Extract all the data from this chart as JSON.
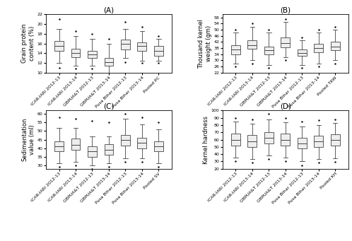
{
  "title_A": "(A)",
  "title_B": "(B)",
  "title_C": "(C)",
  "title_D": "(D)",
  "ylabel_A": "Grain protein\ncontent (%)",
  "ylabel_B": "Thousand kernel\nweight (gm)",
  "ylabel_C": "Sedimentation\nvalue (ml)",
  "ylabel_D": "Kernel hardness",
  "xticklabels_A": [
    "ICAR-IARI 2012-13",
    "ICAR-IARI 2013-14",
    "GBPUA&T 2012-13",
    "GBPUA&T 2013-14",
    "Pusa Bihar 2012-13",
    "Pusa Bihar 2013-14",
    "Pooled PC"
  ],
  "xticklabels_B": [
    "ICAR-IARI 2012-13",
    "ICAR-IARI 2013-14",
    "GBPUA&T 2012-13",
    "GBPUA&T 2013-14",
    "Pusa Bihar 2012-13",
    "Pusa Bihar 2013-14",
    "Pooled TKW"
  ],
  "xticklabels_C": [
    "ICAR-IARI 2012-13",
    "ICAR-IARI 2013-14",
    "GBPUA&T 2012-13",
    "GBPUA&T 2013-14",
    "Pusa Bihar 2012-13",
    "Pusa Bihar 2013-14",
    "Pooled SV"
  ],
  "xticklabels_D": [
    "ICAR-IARI 2012-13",
    "ICAR-IARI 2013-14",
    "GBPUA&T 2012-13",
    "GBPUA&T 2013-14",
    "Pusa Bihar 2012-13",
    "Pusa Bihar 2013-14",
    "Pooled KH"
  ],
  "A_stats": {
    "medians": [
      15.5,
      14.0,
      13.8,
      12.2,
      16.0,
      15.5,
      14.5
    ],
    "q1": [
      14.5,
      13.2,
      13.0,
      11.5,
      14.8,
      14.5,
      13.5
    ],
    "q3": [
      16.5,
      15.0,
      14.5,
      13.0,
      16.8,
      16.2,
      15.5
    ],
    "whislo": [
      12.0,
      11.5,
      11.5,
      10.0,
      13.0,
      12.5,
      12.5
    ],
    "whishi": [
      19.0,
      17.5,
      17.0,
      16.0,
      19.0,
      18.5,
      17.0
    ],
    "fliers_lo": [
      11.0,
      10.8,
      10.8,
      9.5,
      12.2,
      12.0,
      12.0
    ],
    "fliers_hi": [
      21.0,
      18.5,
      18.0,
      17.0,
      20.5,
      19.5,
      17.5
    ],
    "ylim": [
      10,
      22
    ],
    "yticks": [
      10,
      12,
      14,
      16,
      18,
      20,
      22
    ]
  },
  "B_stats": {
    "medians": [
      37.0,
      40.0,
      36.5,
      41.5,
      35.0,
      38.0,
      39.0
    ],
    "q1": [
      34.0,
      37.5,
      34.0,
      38.5,
      33.0,
      35.5,
      36.5
    ],
    "q3": [
      40.0,
      43.0,
      39.0,
      45.0,
      37.0,
      41.0,
      42.0
    ],
    "whislo": [
      28.0,
      30.0,
      27.0,
      32.0,
      27.0,
      28.0,
      30.0
    ],
    "whishi": [
      48.0,
      52.0,
      48.0,
      55.0,
      43.0,
      48.0,
      50.0
    ],
    "fliers_lo": [
      26.0,
      28.0,
      25.0,
      30.0,
      25.0,
      26.0,
      28.0
    ],
    "fliers_hi": [
      50.0,
      54.0,
      50.0,
      57.0,
      45.0,
      50.0,
      52.0
    ],
    "ylim": [
      22,
      60
    ],
    "yticks": [
      22,
      26,
      30,
      34,
      38,
      42,
      46,
      50,
      54,
      58
    ]
  },
  "C_stats": {
    "medians": [
      41.0,
      42.0,
      38.0,
      39.0,
      45.0,
      43.0,
      41.0
    ],
    "q1": [
      38.0,
      39.0,
      35.0,
      36.0,
      41.5,
      40.0,
      38.0
    ],
    "q3": [
      44.0,
      45.5,
      41.0,
      42.5,
      47.5,
      46.0,
      44.0
    ],
    "whislo": [
      31.0,
      32.0,
      30.0,
      31.0,
      34.0,
      34.0,
      31.0
    ],
    "whishi": [
      52.0,
      52.0,
      47.0,
      47.0,
      57.0,
      54.0,
      51.0
    ],
    "fliers_lo": [
      29.0,
      30.0,
      28.0,
      29.0,
      32.0,
      32.0,
      29.0
    ],
    "fliers_hi": [
      58.0,
      57.0,
      56.0,
      55.0,
      60.0,
      58.0,
      55.0
    ],
    "ylim": [
      28,
      62
    ],
    "yticks": [
      30,
      35,
      40,
      45,
      50,
      55,
      60
    ]
  },
  "D_stats": {
    "medians": [
      60.0,
      58.0,
      62.0,
      60.0,
      55.0,
      58.0,
      60.0
    ],
    "q1": [
      52.0,
      50.0,
      55.0,
      52.0,
      48.0,
      50.0,
      52.0
    ],
    "q3": [
      68.0,
      66.0,
      70.0,
      68.0,
      62.0,
      65.0,
      67.0
    ],
    "whislo": [
      35.0,
      33.0,
      38.0,
      35.0,
      30.0,
      33.0,
      34.0
    ],
    "whishi": [
      85.0,
      82.0,
      88.0,
      84.0,
      78.0,
      80.0,
      83.0
    ],
    "fliers_lo": [
      30.0,
      28.0,
      33.0,
      30.0,
      25.0,
      28.0,
      29.0
    ],
    "fliers_hi": [
      90.0,
      88.0,
      95.0,
      90.0,
      85.0,
      87.0,
      88.0
    ],
    "ylim": [
      20,
      100
    ],
    "yticks": [
      20,
      30,
      40,
      50,
      60,
      70,
      80,
      90,
      100
    ]
  },
  "box_facecolor": "#eeeeee",
  "box_edgecolor": "#444444",
  "median_color": "#444444",
  "whisker_color": "#444444",
  "cap_color": "#444444",
  "flier_color": "#777777",
  "tick_fontsize": 4.5,
  "label_fontsize": 6.0,
  "title_fontsize": 7.5
}
